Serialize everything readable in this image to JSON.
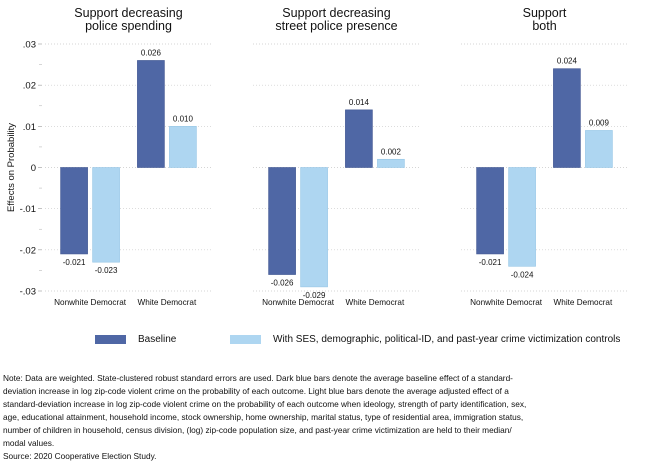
{
  "chart_data": {
    "type": "bar",
    "ylabel": "Effects on Probability",
    "ylim": [
      -0.03,
      0.03
    ],
    "yticks": [
      {
        "value": 0.03,
        "label": ".03"
      },
      {
        "value": 0.02,
        "label": ".02"
      },
      {
        "value": 0.01,
        "label": ".01"
      },
      {
        "value": 0,
        "label": "0"
      },
      {
        "value": -0.01,
        "label": "-.01"
      },
      {
        "value": -0.02,
        "label": "-.02"
      },
      {
        "value": -0.03,
        "label": "-.03"
      }
    ],
    "minor_yticks": [
      0.025,
      0.015,
      0.005,
      -0.005,
      -0.015,
      -0.025
    ],
    "grid": true,
    "categories": [
      "Nonwhite Democrat",
      "White Democrat"
    ],
    "series_names": [
      "Baseline",
      "With SES, demographic, political-ID, and past-year crime victimization controls"
    ],
    "colors": {
      "baseline": "#4f67a5",
      "controls": "#aed6f1"
    },
    "panels": [
      {
        "title_lines": [
          "Support decreasing",
          "police spending"
        ],
        "series": [
          {
            "name": "Baseline",
            "values": [
              -0.021,
              0.026
            ],
            "labels": [
              "-0.021",
              "0.026"
            ]
          },
          {
            "name": "With controls",
            "values": [
              -0.023,
              0.01
            ],
            "labels": [
              "-0.023",
              "0.010"
            ]
          }
        ]
      },
      {
        "title_lines": [
          "Support decreasing",
          "street police presence"
        ],
        "series": [
          {
            "name": "Baseline",
            "values": [
              -0.026,
              0.014
            ],
            "labels": [
              "-0.026",
              "0.014"
            ]
          },
          {
            "name": "With controls",
            "values": [
              -0.029,
              0.002
            ],
            "labels": [
              "-0.029",
              "0.002"
            ]
          }
        ]
      },
      {
        "title_lines": [
          "Support",
          "both"
        ],
        "series": [
          {
            "name": "Baseline",
            "values": [
              -0.021,
              0.024
            ],
            "labels": [
              "-0.021",
              "0.024"
            ]
          },
          {
            "name": "With controls",
            "values": [
              -0.024,
              0.009
            ],
            "labels": [
              "-0.024",
              "0.009"
            ]
          }
        ]
      }
    ],
    "legend": {
      "position": "bottom",
      "items": [
        {
          "label": "Baseline",
          "color": "#4f67a5"
        },
        {
          "label": "With SES, demographic, political-ID, and past-year crime victimization controls",
          "color": "#aed6f1"
        }
      ]
    }
  },
  "note": {
    "lines": [
      "Note: Data are weighted. State-clustered robust standard errors are used. Dark blue bars denote the average baseline effect of a standard-",
      "deviation increase in log zip-code violent crime on the probability of each outcome. Light blue bars denote the average adjusted effect of a",
      "standard-deviation increase in log zip-code violent crime on the probability of each outcome when ideology, strength of party identification, sex,",
      "age, educational attainment, household income, stock ownership, home ownership, marital status, type of residential area, immigration status,",
      "number of children in household, census division, (log) zip-code population size, and past-year crime victimization are held to their median/",
      "modal values."
    ],
    "source": "Source: 2020 Cooperative Election Study."
  }
}
